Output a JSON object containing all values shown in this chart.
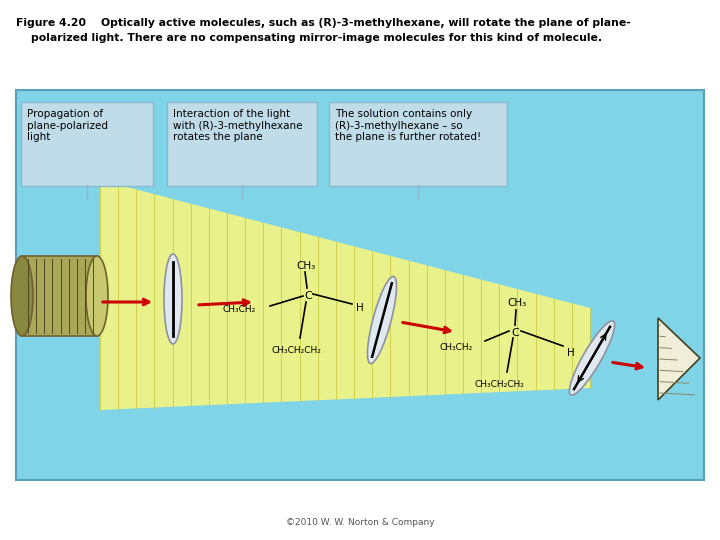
{
  "title_line1": "Figure 4.20    Optically active molecules, such as (R)-3-methylhexane, will rotate the plane of plane-",
  "title_line2": "    polarized light. There are no compensating mirror-image molecules for this kind of molecule.",
  "copyright": "©2010 W. W. Norton & Company",
  "bg_color": "#ffffff",
  "diagram_bg": "#7fd4e8",
  "diagram_border": "#5aa0b8",
  "box_bg": "#c0dce8",
  "box_border": "#8ab8cc",
  "arrow_color": "#cc0000",
  "label1": "Propagation of\nplane-polarized\nlight",
  "label2": "Interaction of the light\nwith (R)-3-methylhexane\nrotates the plane",
  "label3": "The solution contains only\n(R)-3-methylhexane – so\nthe plane is further rotated!"
}
